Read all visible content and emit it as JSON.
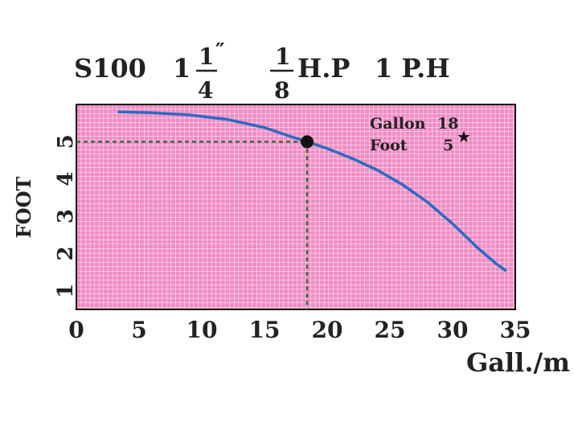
{
  "title": {
    "model": "S100",
    "pipe_whole": "1",
    "pipe_num": "1",
    "pipe_mark": "″",
    "pipe_den": "4",
    "power_num": "1",
    "power_den": "8",
    "power_unit": "H.P",
    "phase": "1 P.H"
  },
  "annotation": {
    "gallon_label": "Gallon",
    "gallon_value": "18",
    "foot_label": "Foot",
    "foot_value": "5",
    "star": "★"
  },
  "chart_data": {
    "type": "line",
    "title": "S100 1 1/4″ 1/8 H.P 1 P.H",
    "xlabel": "Gall./m",
    "ylabel": "FOOT",
    "xlim": [
      0,
      35
    ],
    "ylim": [
      0.5,
      6
    ],
    "xticks": [
      0,
      5,
      10,
      15,
      20,
      25,
      30,
      35
    ],
    "yticks": [
      1,
      2,
      3,
      4,
      5
    ],
    "grid": true,
    "colors": {
      "background": "#f08cc4",
      "grid": "#ffffff",
      "curve": "#2a6cc0",
      "marker": "#111111"
    },
    "series": [
      {
        "x": [
          3.4,
          6,
          9,
          12,
          15,
          17,
          18.4,
          20,
          22,
          24,
          26,
          28,
          30,
          32,
          33.5,
          34.2
        ],
        "y": [
          5.8,
          5.78,
          5.72,
          5.6,
          5.38,
          5.15,
          5.0,
          4.82,
          4.55,
          4.24,
          3.85,
          3.38,
          2.8,
          2.15,
          1.72,
          1.55
        ]
      }
    ],
    "operating_point": {
      "x": 18.4,
      "y": 5
    }
  }
}
